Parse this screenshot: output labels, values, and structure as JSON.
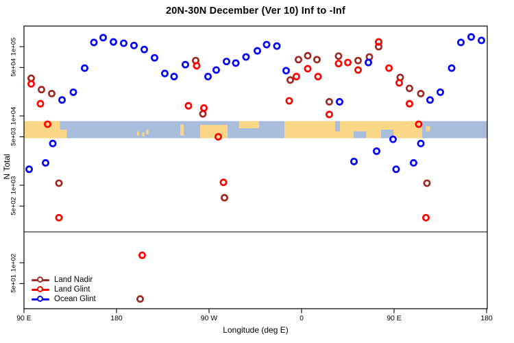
{
  "legend": {
    "items": [
      {
        "label": "Land Nadir",
        "color": "#9C2A23"
      },
      {
        "label": "Land Glint",
        "color": "#FF0000"
      },
      {
        "label": "Ocean Glint",
        "color": "#0000FF"
      }
    ]
  },
  "map_band": {
    "description": "world land/ocean strip for latitude band 20N-30N drawn across the plot",
    "colors": {
      "land": "#FAD687",
      "ocean": "#A9BEDD"
    },
    "y_top": 176.5,
    "height": 25,
    "land_patches": [
      {
        "l0": 90.7,
        "l1": 125,
        "f0": 0,
        "f1": 1
      },
      {
        "l0": 125,
        "l1": 131.5,
        "f0": 0.5,
        "f1": 1
      },
      {
        "l0": 200,
        "l1": 202,
        "f0": 0.6,
        "f1": 0.85
      },
      {
        "l0": 205,
        "l1": 207,
        "f0": 0.65,
        "f1": 0.9
      },
      {
        "l0": 209,
        "l1": 211,
        "f0": 0.5,
        "f1": 0.78
      },
      {
        "l0": 242,
        "l1": 245.5,
        "f0": 0.2,
        "f1": 0.85
      },
      {
        "l0": 261.3,
        "l1": 288,
        "f0": 0.22,
        "f1": 1
      },
      {
        "l0": 299,
        "l1": 318.7,
        "f0": 0,
        "f1": 0.42
      },
      {
        "l0": 343.3,
        "l1": 477.3,
        "f0": 0,
        "f1": 1
      },
      {
        "l0": 481,
        "l1": 485,
        "f0": 0.3,
        "f1": 0.6
      }
    ],
    "ocean_notches": [
      {
        "l0": 392.7,
        "l1": 397.3,
        "f0": 0,
        "f1": 0.6
      },
      {
        "l0": 410.7,
        "l1": 422.7,
        "f0": 0.6,
        "f1": 1
      },
      {
        "l0": 437.3,
        "l1": 449.3,
        "f0": 0.5,
        "f1": 1
      }
    ]
  },
  "chart_data": {
    "type": "scatter",
    "title": "20N-30N December (Ver 10)   Inf to -Inf",
    "xlabel": "Longitude (deg E)",
    "ylabel": "N Total",
    "x_axis": {
      "note": "longitude increases eastward from 90E, wrapping through 180, 90W, 0 back to 180",
      "range": [
        90,
        540
      ],
      "ticks": [
        {
          "lon": 90,
          "label": "90 E"
        },
        {
          "lon": 180,
          "label": "180"
        },
        {
          "lon": 270,
          "label": "90 W"
        },
        {
          "lon": 360,
          "label": "0"
        },
        {
          "lon": 450,
          "label": "90 E"
        },
        {
          "lon": 540,
          "label": "180"
        }
      ]
    },
    "y_axis": {
      "scale": "log",
      "has_break_line": true,
      "ticks": [
        {
          "value": 100000,
          "label": "1e+05"
        },
        {
          "value": 50000,
          "label": "5e+04"
        },
        {
          "value": 10000,
          "label": "1e+04"
        },
        {
          "value": 5000,
          "label": "5e+03"
        },
        {
          "value": 1000,
          "label": "1e+03"
        },
        {
          "value": 500,
          "label": "5e+02"
        },
        {
          "value": 100,
          "label": "1e+02"
        },
        {
          "value": 50,
          "label": "5e+01"
        }
      ]
    },
    "series": [
      {
        "id": "land_nadir",
        "name": "Land Nadir",
        "color": "#9C2A23",
        "points": [
          {
            "lon": 97,
            "v": 35000
          },
          {
            "lon": 107,
            "v": 24000
          },
          {
            "lon": 117,
            "v": 21000
          },
          {
            "lon": 257,
            "v": 63000
          },
          {
            "lon": 264,
            "v": 10700
          },
          {
            "lon": 349,
            "v": 33000
          },
          {
            "lon": 357,
            "v": 65000
          },
          {
            "lon": 366,
            "v": 74000
          },
          {
            "lon": 375,
            "v": 65000
          },
          {
            "lon": 387,
            "v": 16000
          },
          {
            "lon": 396,
            "v": 73000
          },
          {
            "lon": 415,
            "v": 63000
          },
          {
            "lon": 426,
            "v": 71000
          },
          {
            "lon": 435,
            "v": 100000
          },
          {
            "lon": 456,
            "v": 36000
          },
          {
            "lon": 465,
            "v": 25000
          },
          {
            "lon": 476,
            "v": 21000
          },
          {
            "lon": 124,
            "v": 1070
          },
          {
            "lon": 285,
            "v": 660
          },
          {
            "lon": 482,
            "v": 1070
          },
          {
            "lon": 203,
            "v": 30
          }
        ]
      },
      {
        "id": "land_glint",
        "name": "Land Glint",
        "color": "#FF0000",
        "points": [
          {
            "lon": 97,
            "v": 29000
          },
          {
            "lon": 106,
            "v": 15000
          },
          {
            "lon": 258,
            "v": 53000
          },
          {
            "lon": 250,
            "v": 14000
          },
          {
            "lon": 265,
            "v": 13000
          },
          {
            "lon": 355,
            "v": 37000
          },
          {
            "lon": 366,
            "v": 48000
          },
          {
            "lon": 376,
            "v": 37000
          },
          {
            "lon": 348,
            "v": 16500
          },
          {
            "lon": 387,
            "v": 10500
          },
          {
            "lon": 396,
            "v": 57000
          },
          {
            "lon": 405,
            "v": 59000
          },
          {
            "lon": 415,
            "v": 46000
          },
          {
            "lon": 435,
            "v": 117000
          },
          {
            "lon": 445,
            "v": 49000
          },
          {
            "lon": 455,
            "v": 30000
          },
          {
            "lon": 465,
            "v": 15000
          },
          {
            "lon": 113,
            "v": 7600
          },
          {
            "lon": 279,
            "v": 5000
          },
          {
            "lon": 474,
            "v": 7600
          },
          {
            "lon": 284,
            "v": 1100
          },
          {
            "lon": 124,
            "v": 340
          },
          {
            "lon": 481,
            "v": 340
          },
          {
            "lon": 205,
            "v": 128
          }
        ]
      },
      {
        "id": "ocean_glint",
        "name": "Ocean Glint",
        "color": "#0000FF",
        "points": [
          {
            "lon": 127,
            "v": 17000
          },
          {
            "lon": 138,
            "v": 22000
          },
          {
            "lon": 149,
            "v": 49000
          },
          {
            "lon": 158,
            "v": 115000
          },
          {
            "lon": 167,
            "v": 135000
          },
          {
            "lon": 177,
            "v": 117000
          },
          {
            "lon": 187,
            "v": 112000
          },
          {
            "lon": 197,
            "v": 104000
          },
          {
            "lon": 207,
            "v": 91000
          },
          {
            "lon": 217,
            "v": 69000
          },
          {
            "lon": 227,
            "v": 41000
          },
          {
            "lon": 236,
            "v": 37000
          },
          {
            "lon": 247,
            "v": 55000
          },
          {
            "lon": 269,
            "v": 37000
          },
          {
            "lon": 277,
            "v": 46000
          },
          {
            "lon": 287,
            "v": 61000
          },
          {
            "lon": 296,
            "v": 58000
          },
          {
            "lon": 306,
            "v": 71000
          },
          {
            "lon": 317,
            "v": 87000
          },
          {
            "lon": 326,
            "v": 107000
          },
          {
            "lon": 336,
            "v": 102000
          },
          {
            "lon": 345,
            "v": 45000
          },
          {
            "lon": 397,
            "v": 16000
          },
          {
            "lon": 425,
            "v": 59000
          },
          {
            "lon": 485,
            "v": 17000
          },
          {
            "lon": 495,
            "v": 22000
          },
          {
            "lon": 506,
            "v": 49000
          },
          {
            "lon": 515,
            "v": 115000
          },
          {
            "lon": 525,
            "v": 138000
          },
          {
            "lon": 535,
            "v": 123000
          },
          {
            "lon": 118,
            "v": 4000
          },
          {
            "lon": 111,
            "v": 2100
          },
          {
            "lon": 95,
            "v": 1700
          },
          {
            "lon": 449,
            "v": 4600
          },
          {
            "lon": 476,
            "v": 4000
          },
          {
            "lon": 433,
            "v": 3100
          },
          {
            "lon": 411,
            "v": 2200
          },
          {
            "lon": 469,
            "v": 2100
          },
          {
            "lon": 452,
            "v": 1700
          }
        ]
      }
    ]
  }
}
